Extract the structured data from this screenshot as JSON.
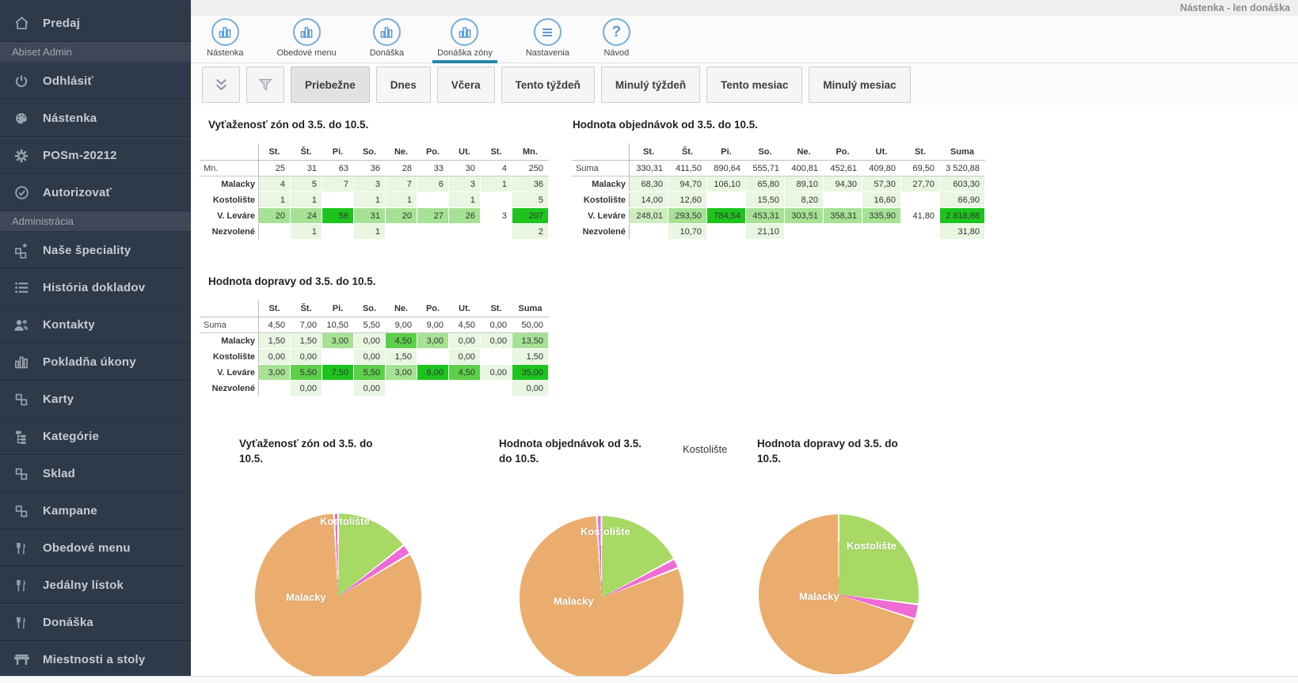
{
  "window": {
    "top_right_label": "Nástenka - len donáška"
  },
  "sidebar": {
    "items": [
      {
        "type": "item",
        "label": "Predaj",
        "icon": "home-icon"
      },
      {
        "type": "section",
        "label": "Abiset Admin"
      },
      {
        "type": "item",
        "label": "Odhlásiť",
        "icon": "power-icon"
      },
      {
        "type": "item",
        "label": "Nástenka",
        "icon": "palette-icon"
      },
      {
        "type": "item",
        "label": "POSm-20212",
        "icon": "gear-icon"
      },
      {
        "type": "item",
        "label": "Autorizovať",
        "icon": "check-circle-icon"
      },
      {
        "type": "section",
        "label": "Administrácia"
      },
      {
        "type": "item",
        "label": "Naše špeciality",
        "icon": "blocks-star-icon"
      },
      {
        "type": "item",
        "label": "História dokladov",
        "icon": "list-icon"
      },
      {
        "type": "item",
        "label": "Kontakty",
        "icon": "people-icon"
      },
      {
        "type": "item",
        "label": "Pokladňa úkony",
        "icon": "barchart-icon"
      },
      {
        "type": "item",
        "label": "Karty",
        "icon": "blocks-icon"
      },
      {
        "type": "item",
        "label": "Kategórie",
        "icon": "tree-icon"
      },
      {
        "type": "item",
        "label": "Sklad",
        "icon": "blocks-icon"
      },
      {
        "type": "item",
        "label": "Kampane",
        "icon": "blocks-icon"
      },
      {
        "type": "item",
        "label": "Obedové menu",
        "icon": "cutlery-icon"
      },
      {
        "type": "item",
        "label": "Jedálny lístok",
        "icon": "cutlery-icon"
      },
      {
        "type": "item",
        "label": "Donáška",
        "icon": "cutlery-icon"
      },
      {
        "type": "item",
        "label": "Miestnosti a stoly",
        "icon": "table-icon"
      }
    ]
  },
  "nav": {
    "tabs": [
      {
        "label": "Nástenka",
        "icon": "barchart-circle-icon",
        "active": false
      },
      {
        "label": "Obedové menu",
        "icon": "barchart-circle-icon",
        "active": false
      },
      {
        "label": "Donáška",
        "icon": "barchart-circle-icon",
        "active": false
      },
      {
        "label": "Donáška zóny",
        "icon": "barchart-circle-icon",
        "active": true
      },
      {
        "label": "Nastavenia",
        "icon": "menu-circle-icon",
        "active": false
      },
      {
        "label": "Návod",
        "icon": "question-circle-icon",
        "active": false
      }
    ]
  },
  "toolbar": {
    "icon_buttons": [
      {
        "name": "collapse-button",
        "icon": "double-chevron-down-icon"
      },
      {
        "name": "filter-button",
        "icon": "funnel-icon"
      }
    ],
    "buttons": [
      {
        "label": "Priebežne",
        "active": true
      },
      {
        "label": "Dnes",
        "active": false
      },
      {
        "label": "Včera",
        "active": false
      },
      {
        "label": "Tento týždeň",
        "active": false
      },
      {
        "label": "Minulý týždeň",
        "active": false
      },
      {
        "label": "Tento mesiac",
        "active": false
      },
      {
        "label": "Minulý mesiac",
        "active": false
      }
    ]
  },
  "colors": {
    "accent": "#2a85aa",
    "sidebar_bg": "#2e3949",
    "heatmap": {
      "g1": "#e8f6e2",
      "g2": "#cdedbf",
      "g3": "#a6e294",
      "g4": "#5ccf4b",
      "g5": "#1ec41e"
    },
    "pie": {
      "malacky": "#a7d964",
      "kostoliste": "#ee6cd3",
      "v_levare": "#ebad6e",
      "nezvolene": "#ee6cd3"
    }
  },
  "tables": [
    {
      "title": "Vyťaženosť zón od 3.5. do 10.5.",
      "columns": [
        "St.",
        "Št.",
        "Pi.",
        "So.",
        "Ne.",
        "Po.",
        "Ut.",
        "St."
      ],
      "total_column": "Mn.",
      "summary_label": "Mn.",
      "summary": [
        "25",
        "31",
        "63",
        "36",
        "28",
        "33",
        "30",
        "4"
      ],
      "summary_total": "250",
      "rows": [
        {
          "label": "Malacky",
          "cells": [
            {
              "v": "4",
              "c": "g1"
            },
            {
              "v": "5",
              "c": "g1"
            },
            {
              "v": "7",
              "c": "g1"
            },
            {
              "v": "3",
              "c": "g1"
            },
            {
              "v": "7",
              "c": "g1"
            },
            {
              "v": "6",
              "c": "g1"
            },
            {
              "v": "3",
              "c": "g1"
            },
            {
              "v": "1",
              "c": "g1"
            }
          ],
          "total": {
            "v": "36",
            "c": "g1"
          }
        },
        {
          "label": "Kostolište",
          "cells": [
            {
              "v": "1",
              "c": "g1"
            },
            {
              "v": "1",
              "c": "g1"
            },
            {
              "v": "",
              "c": "g0"
            },
            {
              "v": "1",
              "c": "g1"
            },
            {
              "v": "1",
              "c": "g1"
            },
            {
              "v": "",
              "c": "g0"
            },
            {
              "v": "1",
              "c": "g1"
            },
            {
              "v": "",
              "c": "g0"
            }
          ],
          "total": {
            "v": "5",
            "c": "g1"
          }
        },
        {
          "label": "V. Leváre",
          "cells": [
            {
              "v": "20",
              "c": "g3"
            },
            {
              "v": "24",
              "c": "g3"
            },
            {
              "v": "56",
              "c": "g5"
            },
            {
              "v": "31",
              "c": "g3"
            },
            {
              "v": "20",
              "c": "g3"
            },
            {
              "v": "27",
              "c": "g3"
            },
            {
              "v": "26",
              "c": "g3"
            },
            {
              "v": "3",
              "c": "g0"
            }
          ],
          "total": {
            "v": "207",
            "c": "g5"
          }
        },
        {
          "label": "Nezvolené",
          "cells": [
            {
              "v": "",
              "c": "g0"
            },
            {
              "v": "1",
              "c": "g1"
            },
            {
              "v": "",
              "c": "g0"
            },
            {
              "v": "1",
              "c": "g1"
            },
            {
              "v": "",
              "c": "g0"
            },
            {
              "v": "",
              "c": "g0"
            },
            {
              "v": "",
              "c": "g0"
            },
            {
              "v": "",
              "c": "g0"
            }
          ],
          "total": {
            "v": "2",
            "c": "g1"
          }
        }
      ]
    },
    {
      "title": "Hodnota objednávok od 3.5. do 10.5.",
      "columns": [
        "St.",
        "Št.",
        "Pi.",
        "So.",
        "Ne.",
        "Po.",
        "Ut.",
        "St."
      ],
      "total_column": "Suma",
      "summary_label": "Suma",
      "summary": [
        "330,31",
        "411,50",
        "890,64",
        "555,71",
        "400,81",
        "452,61",
        "409,80",
        "69,50"
      ],
      "summary_total": "3 520,88",
      "rows": [
        {
          "label": "Malacky",
          "cells": [
            {
              "v": "68,30",
              "c": "g1"
            },
            {
              "v": "94,70",
              "c": "g1"
            },
            {
              "v": "106,10",
              "c": "g1"
            },
            {
              "v": "65,80",
              "c": "g1"
            },
            {
              "v": "89,10",
              "c": "g1"
            },
            {
              "v": "94,30",
              "c": "g1"
            },
            {
              "v": "57,30",
              "c": "g1"
            },
            {
              "v": "27,70",
              "c": "g1"
            }
          ],
          "total": {
            "v": "603,30",
            "c": "g1"
          }
        },
        {
          "label": "Kostolište",
          "cells": [
            {
              "v": "14,00",
              "c": "g1"
            },
            {
              "v": "12,60",
              "c": "g1"
            },
            {
              "v": "",
              "c": "g0"
            },
            {
              "v": "15,50",
              "c": "g1"
            },
            {
              "v": "8,20",
              "c": "g1"
            },
            {
              "v": "",
              "c": "g0"
            },
            {
              "v": "16,60",
              "c": "g1"
            },
            {
              "v": "",
              "c": "g0"
            }
          ],
          "total": {
            "v": "66,90",
            "c": "g1"
          }
        },
        {
          "label": "V. Leváre",
          "cells": [
            {
              "v": "248,01",
              "c": "g2"
            },
            {
              "v": "293,50",
              "c": "g3"
            },
            {
              "v": "784,54",
              "c": "g5"
            },
            {
              "v": "453,31",
              "c": "g3"
            },
            {
              "v": "303,51",
              "c": "g3"
            },
            {
              "v": "358,31",
              "c": "g3"
            },
            {
              "v": "335,90",
              "c": "g3"
            },
            {
              "v": "41,80",
              "c": "g0"
            }
          ],
          "total": {
            "v": "2 818,88",
            "c": "g5"
          }
        },
        {
          "label": "Nezvolené",
          "cells": [
            {
              "v": "",
              "c": "g0"
            },
            {
              "v": "10,70",
              "c": "g1"
            },
            {
              "v": "",
              "c": "g0"
            },
            {
              "v": "21,10",
              "c": "g1"
            },
            {
              "v": "",
              "c": "g0"
            },
            {
              "v": "",
              "c": "g0"
            },
            {
              "v": "",
              "c": "g0"
            },
            {
              "v": "",
              "c": "g0"
            }
          ],
          "total": {
            "v": "31,80",
            "c": "g1"
          }
        }
      ]
    },
    {
      "title": "Hodnota dopravy od 3.5. do 10.5.",
      "columns": [
        "St.",
        "Št.",
        "Pi.",
        "So.",
        "Ne.",
        "Po.",
        "Ut.",
        "St."
      ],
      "total_column": "Suma",
      "summary_label": "Suma",
      "summary": [
        "4,50",
        "7,00",
        "10,50",
        "5,50",
        "9,00",
        "9,00",
        "4,50",
        "0,00"
      ],
      "summary_total": "50,00",
      "rows": [
        {
          "label": "Malacky",
          "cells": [
            {
              "v": "1,50",
              "c": "g1"
            },
            {
              "v": "1,50",
              "c": "g1"
            },
            {
              "v": "3,00",
              "c": "g3"
            },
            {
              "v": "0,00",
              "c": "g1"
            },
            {
              "v": "4,50",
              "c": "g4"
            },
            {
              "v": "3,00",
              "c": "g3"
            },
            {
              "v": "0,00",
              "c": "g1"
            },
            {
              "v": "0,00",
              "c": "g1"
            }
          ],
          "total": {
            "v": "13,50",
            "c": "g3"
          }
        },
        {
          "label": "Kostolište",
          "cells": [
            {
              "v": "0,00",
              "c": "g1"
            },
            {
              "v": "0,00",
              "c": "g1"
            },
            {
              "v": "",
              "c": "g0"
            },
            {
              "v": "0,00",
              "c": "g1"
            },
            {
              "v": "1,50",
              "c": "g1"
            },
            {
              "v": "",
              "c": "g0"
            },
            {
              "v": "0,00",
              "c": "g1"
            },
            {
              "v": "",
              "c": "g0"
            }
          ],
          "total": {
            "v": "1,50",
            "c": "g1"
          }
        },
        {
          "label": "V. Leváre",
          "cells": [
            {
              "v": "3,00",
              "c": "g3"
            },
            {
              "v": "5,50",
              "c": "g4"
            },
            {
              "v": "7,50",
              "c": "g5"
            },
            {
              "v": "5,50",
              "c": "g4"
            },
            {
              "v": "3,00",
              "c": "g3"
            },
            {
              "v": "6,00",
              "c": "g5"
            },
            {
              "v": "4,50",
              "c": "g4"
            },
            {
              "v": "0,00",
              "c": "g1"
            }
          ],
          "total": {
            "v": "35,00",
            "c": "g5"
          }
        },
        {
          "label": "Nezvolené",
          "cells": [
            {
              "v": "",
              "c": "g0"
            },
            {
              "v": "0,00",
              "c": "g1"
            },
            {
              "v": "",
              "c": "g0"
            },
            {
              "v": "0,00",
              "c": "g1"
            },
            {
              "v": "",
              "c": "g0"
            },
            {
              "v": "",
              "c": "g0"
            },
            {
              "v": "",
              "c": "g0"
            },
            {
              "v": "",
              "c": "g0"
            }
          ],
          "total": {
            "v": "0,00",
            "c": "g1"
          }
        }
      ]
    }
  ],
  "main": {
    "floating_label": "Kostolište"
  },
  "chart_data": [
    {
      "type": "pie",
      "title": "Vyťaženosť zón od 3.5. do 10.5.",
      "title_lines": [
        "Vyťaženosť zón od 3.5. do",
        "10.5."
      ],
      "categories": [
        "Malacky",
        "Kostolište",
        "V. Leváre",
        "Nezvolené"
      ],
      "values": [
        36,
        5,
        207,
        2
      ],
      "color_keys": [
        "malacky",
        "kostoliste",
        "v_levare",
        "nezvolene"
      ],
      "slice_labels": [
        "Kostolište",
        "Malacky"
      ],
      "legend_position": "none"
    },
    {
      "type": "pie",
      "title": "Hodnota objednávok od 3.5. do 10.5.",
      "title_lines": [
        "Hodnota objednávok od 3.5.",
        "do 10.5."
      ],
      "categories": [
        "Malacky",
        "Kostolište",
        "V. Leváre",
        "Nezvolené"
      ],
      "values": [
        603.3,
        66.9,
        2818.88,
        31.8
      ],
      "color_keys": [
        "malacky",
        "kostoliste",
        "v_levare",
        "nezvolene"
      ],
      "slice_labels": [
        "Kostolište",
        "Malacky"
      ],
      "legend_position": "none"
    },
    {
      "type": "pie",
      "title": "Hodnota dopravy od 3.5. do 10.5.",
      "title_lines": [
        "Hodnota dopravy od 3.5. do",
        "10.5."
      ],
      "categories": [
        "Malacky",
        "Kostolište",
        "V. Leváre",
        "Nezvolené"
      ],
      "values": [
        13.5,
        1.5,
        35.0,
        0
      ],
      "color_keys": [
        "malacky",
        "kostoliste",
        "v_levare",
        "nezvolene"
      ],
      "slice_labels": [
        "Kostolište",
        "Malacky"
      ],
      "legend_position": "none"
    }
  ]
}
